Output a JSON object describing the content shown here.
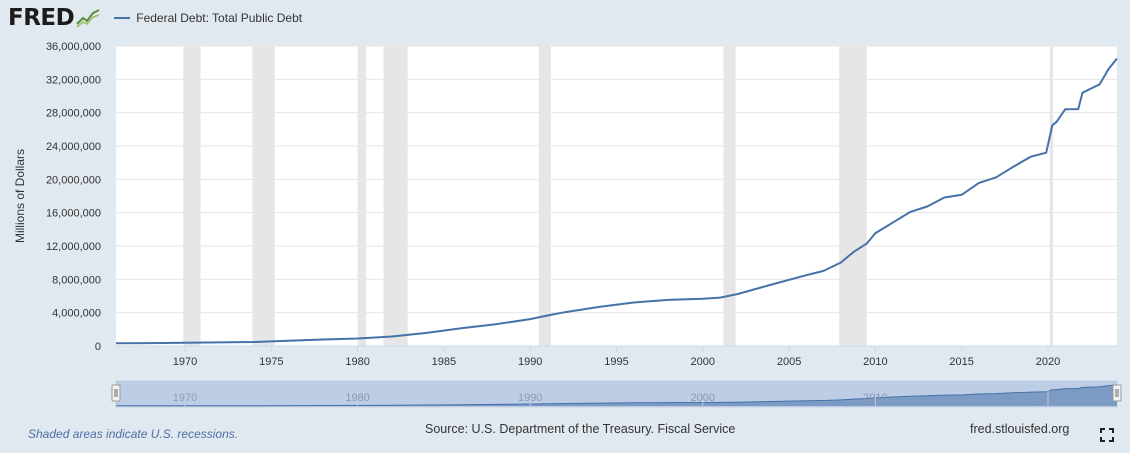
{
  "header": {
    "logo": "FRED",
    "series_label": "Federal Debt: Total Public Debt",
    "series_color": "#4572a7"
  },
  "footer": {
    "note": "Shaded areas indicate U.S. recessions.",
    "source": "Source: U.S. Department of the Treasury. Fiscal Service",
    "site": "fred.stlouisfed.org"
  },
  "chart_data": {
    "type": "line",
    "ylabel": "Millions of Dollars",
    "xlim": [
      1966,
      2024
    ],
    "ylim": [
      0,
      36000000
    ],
    "yticks": [
      0,
      4000000,
      8000000,
      12000000,
      16000000,
      20000000,
      24000000,
      28000000,
      32000000,
      36000000
    ],
    "ytick_labels": [
      "0",
      "4,000,000",
      "8,000,000",
      "12,000,000",
      "16,000,000",
      "20,000,000",
      "24,000,000",
      "28,000,000",
      "32,000,000",
      "36,000,000"
    ],
    "xticks": [
      1970,
      1975,
      1980,
      1985,
      1990,
      1995,
      2000,
      2005,
      2010,
      2015,
      2020
    ],
    "grid": true,
    "recessions": [
      [
        1969.9,
        1970.9
      ],
      [
        1973.9,
        1975.2
      ],
      [
        1980.0,
        1980.5
      ],
      [
        1981.5,
        1982.9
      ],
      [
        1990.5,
        1991.2
      ],
      [
        2001.2,
        2001.9
      ],
      [
        2007.9,
        2009.5
      ],
      [
        2020.1,
        2020.3
      ]
    ],
    "series": [
      {
        "name": "Federal Debt: Total Public Debt",
        "color": "#4572a7",
        "x": [
          1966,
          1968,
          1970,
          1972,
          1974,
          1976,
          1978,
          1980,
          1982,
          1984,
          1986,
          1988,
          1990,
          1991,
          1992,
          1994,
          1996,
          1998,
          2000,
          2001,
          2002,
          2004,
          2006,
          2007,
          2008,
          2008.75,
          2009.5,
          2010,
          2011,
          2012,
          2013,
          2014,
          2015,
          2016,
          2017,
          2018,
          2019,
          2019.9,
          2020.25,
          2020.5,
          2021,
          2021.75,
          2022,
          2022.5,
          2023,
          2023.5,
          2024
        ],
        "y": [
          320000,
          350000,
          380000,
          430000,
          480000,
          620000,
          780000,
          900000,
          1140000,
          1570000,
          2120000,
          2600000,
          3230000,
          3660000,
          4060000,
          4690000,
          5220000,
          5530000,
          5660000,
          5810000,
          6230000,
          7380000,
          8500000,
          9010000,
          10020000,
          11300000,
          12300000,
          13550000,
          14800000,
          16070000,
          16740000,
          17820000,
          18150000,
          19570000,
          20240000,
          21520000,
          22720000,
          23200000,
          26480000,
          26900000,
          28400000,
          28430000,
          30400000,
          30900000,
          31400000,
          33200000,
          34500000
        ]
      }
    ]
  },
  "navigator": {
    "xticks": [
      1970,
      1980,
      1990,
      2000,
      2010,
      2020
    ]
  }
}
